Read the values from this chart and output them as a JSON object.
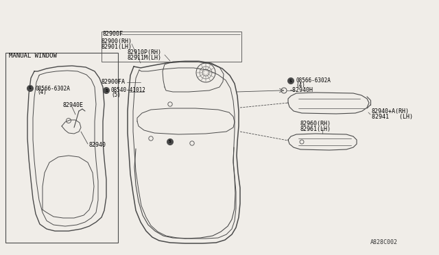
{
  "bg_color": "#f0ede8",
  "line_color": "#4a4a4a",
  "text_color": "#000000",
  "title": "A828C002",
  "font_family": "monospace",
  "labels": {
    "manual_window": "MANUAL WINDOW",
    "l82940": "82940",
    "l82940E": "82940E",
    "l08566_left": "08566-6302A",
    "l08566_left2": "(4)",
    "l82900RH": "82900(RH)",
    "l82901LH": "82901(LH)",
    "l82900FA": "82900FA",
    "l08540": "08540-41012",
    "l08540_2": "(5)",
    "l82910P": "82910P(RH)",
    "l82911M": "82911M(LH)",
    "l82900F": "82900F",
    "l82960a": "82960(RH)",
    "l82960b": "82961(LH)",
    "l82940Aa": "82940+A(RH)",
    "l82940Ab": "82941   (LH)",
    "l82940H": "-82940H",
    "l08566_righta": "08566-6302A",
    "l08566_rightb": "(4)"
  }
}
